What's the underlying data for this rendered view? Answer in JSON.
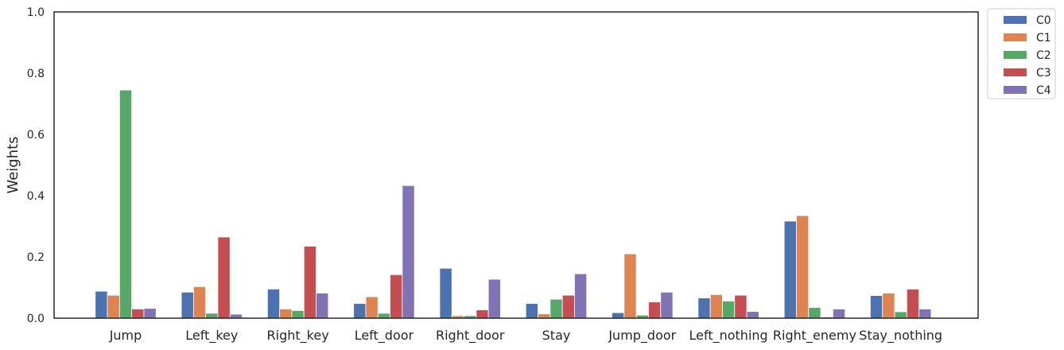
{
  "chart_data": {
    "type": "bar",
    "title": "",
    "xlabel": "",
    "ylabel": "Weights",
    "ylim": [
      0,
      1.0
    ],
    "yticks": [
      "0.0",
      "0.2",
      "0.4",
      "0.6",
      "0.8",
      "1.0"
    ],
    "grid": false,
    "legend_position": "outside-top-right",
    "categories": [
      "Jump",
      "Left_key",
      "Right_key",
      "Left_door",
      "Right_door",
      "Stay",
      "Jump_door",
      "Left_nothing",
      "Right_enemy",
      "Stay_nothing"
    ],
    "series": [
      {
        "name": "C0",
        "color": "#4c72b0",
        "values": [
          0.088,
          0.085,
          0.095,
          0.048,
          0.163,
          0.048,
          0.018,
          0.066,
          0.317,
          0.074
        ]
      },
      {
        "name": "C1",
        "color": "#dd8452",
        "values": [
          0.075,
          0.103,
          0.03,
          0.07,
          0.008,
          0.014,
          0.21,
          0.077,
          0.335,
          0.082
        ]
      },
      {
        "name": "C2",
        "color": "#55a868",
        "values": [
          0.745,
          0.016,
          0.025,
          0.016,
          0.008,
          0.062,
          0.01,
          0.056,
          0.035,
          0.021
        ]
      },
      {
        "name": "C3",
        "color": "#c44e52",
        "values": [
          0.03,
          0.265,
          0.235,
          0.142,
          0.027,
          0.075,
          0.053,
          0.075,
          0.004,
          0.095
        ]
      },
      {
        "name": "C4",
        "color": "#8172b3",
        "values": [
          0.032,
          0.013,
          0.082,
          0.433,
          0.127,
          0.145,
          0.085,
          0.022,
          0.03,
          0.03
        ]
      }
    ]
  }
}
